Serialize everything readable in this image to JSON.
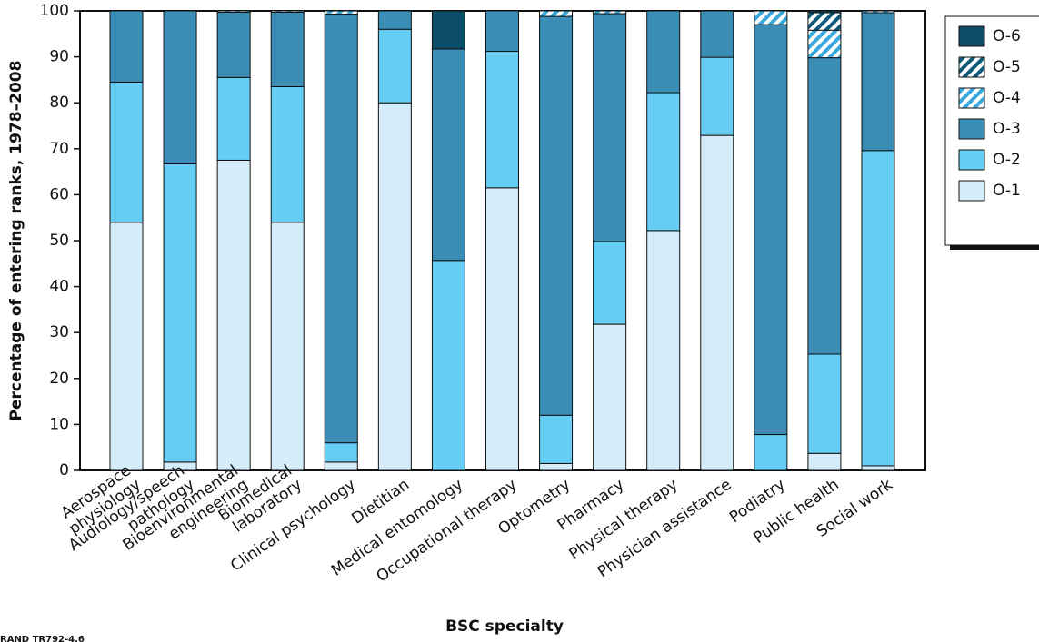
{
  "chart_data": {
    "type": "stacked_bar",
    "x_label": "BSC specialty",
    "y_label": "Percentage of entering ranks, 1978–2008",
    "footnote": "RAND TR792-4.6",
    "categories": [
      [
        "Aerospace",
        "physiology"
      ],
      [
        "Audiology/speech",
        "pathology"
      ],
      [
        "Bioenvironmental",
        "engineering"
      ],
      [
        "Biomedical",
        "laboratory"
      ],
      [
        "Clinical psychology"
      ],
      [
        "Dietitian"
      ],
      [
        "Medical entomology"
      ],
      [
        "Occupational therapy"
      ],
      [
        "Optometry"
      ],
      [
        "Pharmacy"
      ],
      [
        "Physical therapy"
      ],
      [
        "Physician assistance"
      ],
      [
        "Podiatry"
      ],
      [
        "Public health"
      ],
      [
        "Social work"
      ]
    ],
    "series": [
      {
        "name": "O-1",
        "color": "#d5edfa",
        "values": [
          54,
          1.8,
          67.5,
          54,
          1.8,
          80,
          0,
          61.5,
          1.5,
          31.8,
          52.2,
          72.9,
          0,
          3.7,
          1
        ]
      },
      {
        "name": "O-2",
        "color": "#66cdf5",
        "values": [
          30.5,
          64.9,
          18,
          29.5,
          4.2,
          16,
          45.7,
          29.7,
          10.5,
          18,
          30,
          17,
          7.8,
          21.6,
          68.6
        ]
      },
      {
        "name": "O-3",
        "color": "#3a8db5",
        "values": [
          15.5,
          33.3,
          14.2,
          16.2,
          93.3,
          4,
          46,
          8.8,
          86.8,
          49.6,
          17.8,
          10.1,
          89.2,
          64.5,
          30
        ]
      },
      {
        "name": "O-4",
        "color": "#38a8dc",
        "hatch": true,
        "values": [
          0,
          0,
          0.3,
          0.3,
          0.7,
          0,
          0,
          0,
          1.2,
          0.6,
          0,
          0,
          3,
          6,
          0.4
        ]
      },
      {
        "name": "O-5",
        "color": "#0c5a78",
        "hatch": true,
        "values": [
          0,
          0,
          0,
          0,
          0,
          0,
          0,
          0,
          0,
          0,
          0,
          0,
          0,
          3.8,
          0
        ]
      },
      {
        "name": "O-6",
        "color": "#0b4c67",
        "values": [
          0,
          0,
          0,
          0,
          0,
          0,
          8.3,
          0,
          0,
          0,
          0,
          0,
          0,
          0.4,
          0
        ]
      }
    ],
    "ylim": [
      0,
      100
    ],
    "yticks": [
      0,
      10,
      20,
      30,
      40,
      50,
      60,
      70,
      80,
      90,
      100
    ],
    "legend": "right",
    "legend_order": "reversed"
  }
}
